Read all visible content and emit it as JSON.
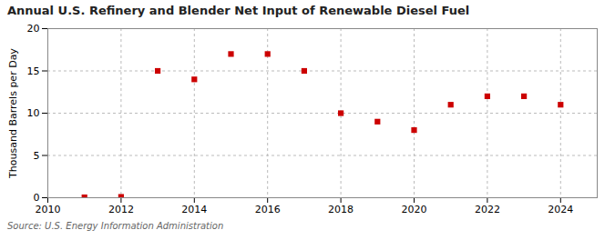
{
  "chart_data": {
    "type": "scatter",
    "title": "Annual U.S. Refinery and Blender Net Input of Renewable Diesel Fuel",
    "ylabel": "Thousand Barrels per Day",
    "source": "Source: U.S. Energy Information Administration",
    "x": [
      2011,
      2012,
      2013,
      2014,
      2015,
      2016,
      2017,
      2018,
      2019,
      2020,
      2021,
      2022,
      2023,
      2024
    ],
    "values": [
      0.05,
      0.1,
      15.0,
      14.0,
      17.0,
      17.0,
      15.0,
      10.0,
      9.0,
      8.0,
      11.0,
      12.0,
      12.0,
      11.0
    ],
    "color": "#cc0000",
    "marker": "square",
    "xlim": [
      2010,
      2025
    ],
    "ylim": [
      0,
      20
    ],
    "xticks": [
      2010,
      2012,
      2014,
      2016,
      2018,
      2020,
      2022,
      2024
    ],
    "yticks": [
      0,
      5,
      10,
      15,
      20
    ],
    "grid": true
  }
}
